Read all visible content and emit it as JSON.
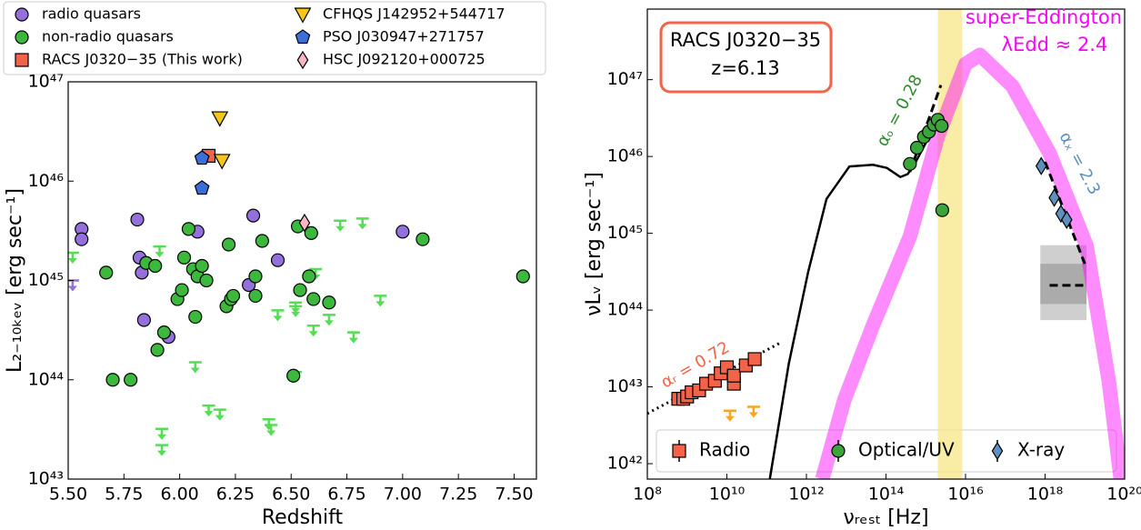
{
  "chart_data": [
    {
      "type": "scatter",
      "xlabel": "Redshift",
      "ylabel": "L₂₋₁₀ₖₑᵥ  [erg sec⁻¹]",
      "xlim": [
        5.5,
        7.6
      ],
      "ylim": [
        1e+43,
        1e+47
      ],
      "yscale": "log",
      "xticks": [
        {
          "value": 5.5,
          "label": "5.50"
        },
        5.75,
        {
          "value": 6,
          "label": "6.00"
        },
        6.25,
        {
          "value": 6.5,
          "label": "6.50"
        },
        6.75,
        {
          "value": 7,
          "label": "7.00"
        },
        7.25,
        {
          "value": 7.5,
          "label": "7.50"
        }
      ],
      "yticks": [
        {
          "value": 1e+43,
          "label": "10⁴³"
        },
        {
          "value": 1e+44,
          "label": "10⁴⁴"
        },
        {
          "value": 1e+45,
          "label": "10⁴⁵"
        },
        {
          "value": 1e+46,
          "label": "10⁴⁶"
        },
        {
          "value": 1e+47,
          "label": "10⁴⁷"
        }
      ],
      "legend": "top",
      "series": [
        {
          "name": "radio quasars",
          "color": "#9370db",
          "marker": "circle",
          "x": [
            5.56,
            5.56,
            5.81,
            5.82,
            5.83,
            5.84,
            5.95,
            6.08,
            6.31,
            6.33,
            6.44,
            7.0
          ],
          "values": [
            3.3e+45,
            2.6e+45,
            4.1e+45,
            1.7e+45,
            1.2e+45,
            4e+44,
            2.7e+44,
            3.1e+45,
            9e+44,
            4.5e+45,
            1.6e+45,
            3.1e+45
          ],
          "upper_limits": {
            "x": [
              5.52
            ],
            "values": [
              1e+45
            ],
            "color": "#9370db"
          }
        },
        {
          "name": "non-radio quasars",
          "color": "#3cb83c",
          "marker": "circle",
          "x": [
            5.67,
            5.7,
            5.78,
            5.85,
            5.89,
            5.9,
            5.93,
            5.99,
            6.01,
            6.02,
            6.04,
            6.06,
            6.07,
            6.08,
            6.1,
            6.12,
            6.21,
            6.22,
            6.23,
            6.24,
            6.34,
            6.34,
            6.37,
            6.51,
            6.53,
            6.54,
            6.58,
            6.59,
            6.6,
            6.67,
            7.09,
            7.54
          ],
          "values": [
            1.2e+45,
            1e+44,
            1e+44,
            1.5e+45,
            1.4e+45,
            2e+44,
            3e+44,
            6.5e+44,
            8e+44,
            1.7e+45,
            3.3e+45,
            1.3e+45,
            4.3e+44,
            1.1e+45,
            1.4e+45,
            1e+45,
            5.5e+44,
            2.3e+45,
            6.5e+44,
            7e+44,
            7e+44,
            1.1e+45,
            2.5e+45,
            1.1e+44,
            3.5e+45,
            8e+44,
            1.1e+45,
            3e+45,
            6.5e+44,
            6e+44,
            2.6e+45,
            1.1e+45
          ],
          "upper_limits": {
            "x": [
              5.52,
              5.92,
              5.92,
              5.91,
              6.07,
              6.13,
              6.18,
              6.4,
              6.41,
              6.44,
              6.52,
              6.52,
              6.6,
              6.61,
              6.67,
              6.72,
              6.78,
              6.82,
              6.9,
              6.52
            ],
            "values": [
              1.9e+45,
              3.2e+43,
              2.2e+43,
              2.2e+45,
              1.5e+44,
              5.5e+43,
              5e+43,
              4e+43,
              3.5e+43,
              5e+44,
              6e+44,
              5.5e+44,
              3.5e+44,
              1.3e+45,
              4.5e+44,
              4e+45,
              3e+44,
              4.2e+45,
              7e+44,
              1.2e+44
            ],
            "color": "#55dd55"
          }
        },
        {
          "name": "RACS J0320−35 (This work)",
          "color": "#f26349",
          "marker": "square",
          "x": [
            6.13
          ],
          "values": [
            1.8e+46
          ]
        },
        {
          "name": "CFHQS J142952+544717",
          "color": "#f5c518",
          "marker": "triangle",
          "x": [
            6.18,
            6.19
          ],
          "values": [
            4.3e+46,
            1.6e+46
          ]
        },
        {
          "name": "PSO J030947+271757",
          "color": "#3a6fd8",
          "marker": "pentagon",
          "x": [
            6.1,
            6.1
          ],
          "values": [
            1.7e+46,
            8.5e+45
          ]
        },
        {
          "name": "HSC J092120+000725",
          "color": "#f7b6c2",
          "marker": "diamond",
          "x": [
            6.56
          ],
          "values": [
            3.8e+45
          ]
        }
      ]
    },
    {
      "type": "scatter",
      "xlabel": "νᵣₑₛₜ [Hz]",
      "ylabel": "νLᵥ [erg sec⁻¹]",
      "xlim": [
        100000000.0,
        1e+20
      ],
      "ylim": [
        6.3e+41,
        8.3e+47
      ],
      "xscale": "log",
      "yscale": "log",
      "xticks": [
        {
          "value": 100000000.0,
          "label": "10⁸"
        },
        {
          "value": 10000000000.0,
          "label": "10¹⁰"
        },
        {
          "value": 1000000000000.0,
          "label": "10¹²"
        },
        {
          "value": 100000000000000.0,
          "label": "10¹⁴"
        },
        {
          "value": 1e+16,
          "label": "10¹⁶"
        },
        {
          "value": 1e+18,
          "label": "10¹⁸"
        },
        {
          "value": 1e+20,
          "label": "10²⁰"
        }
      ],
      "yticks": [
        {
          "value": 1e+42,
          "label": "10⁴²"
        },
        {
          "value": 1e+43,
          "label": "10⁴³"
        },
        {
          "value": 1e+44,
          "label": "10⁴⁴"
        },
        {
          "value": 1e+45,
          "label": "10⁴⁵"
        },
        {
          "value": 1e+46,
          "label": "10⁴⁶"
        },
        {
          "value": 1e+47,
          "label": "10⁴⁷"
        }
      ],
      "legend": "lower center",
      "annotations": [
        "RACS J0320−35",
        "z=6.13",
        "αₒ = 0.28",
        "αₓ = 2.3",
        "αᵣ = 0.72"
      ],
      "shaded_regions": [
        {
          "xlim": [
            2000000000000000.0,
            8300000000000000.0
          ],
          "color": "#f7e98e"
        }
      ],
      "boxes": [
        {
          "xlim": [
            7.6e+17,
            1.1e+19
          ],
          "ylim": [
            7.4e+43,
            7e+44
          ],
          "color": "#cfcfcf"
        },
        {
          "xlim": [
            7.6e+17,
            1.1e+19
          ],
          "ylim": [
            1.2e+44,
            4e+44
          ],
          "color": "#ababab"
        }
      ],
      "curves": [
        {
          "name": "super-Eddington",
          "label": "λEdd ≈ 2.4",
          "color": "#ff00ff",
          "style": "band",
          "x": [
            2500000000000.0,
            9000000000000.0,
            47000000000000.0,
            400000000000000.0,
            2000000000000000.0,
            1e+16,
            2.3e+16,
            1.5e+17,
            1.3e+18,
            1.1e+19,
            4e+19,
            8e+19
          ],
          "values": [
            6.3e+41,
            6.8e+42,
            6.3e+43,
            9.1e+44,
            1.8e+46,
            1.6e+47,
            2.1e+47,
            8.3e+46,
            1.1e+46,
            6.9e+44,
            1.2e+43,
            6.3e+41
          ]
        },
        {
          "color": "#000000",
          "style": "solid",
          "x": [
            120000000000.0,
            360000000000.0,
            1100000000000.0,
            3200000000000.0,
            12000000000000.0,
            47000000000000.0,
            105000000000000.0,
            230000000000000.0,
            350000000000000.0,
            520000000000000.0,
            1000000000000000.0,
            2000000000000000.0
          ],
          "values": [
            6.3e+41,
            2e+43,
            3.1e+44,
            2.8e+45,
            7.4e+45,
            7.8e+45,
            7.1e+45,
            5.4e+45,
            5.9e+45,
            7.9e+45,
            1.5e+46,
            3e+46
          ]
        },
        {
          "color": "#000000",
          "style": "dotted",
          "x": [
            100000000.0,
            210000000000.0
          ],
          "values": [
            4.5e+42,
            3.7e+43
          ]
        },
        {
          "color": "#000000",
          "style": "dashed",
          "x": [
            400000000000000.0,
            2400000000000000.0
          ],
          "values": [
            6.3e+45,
            8.5e+46
          ]
        },
        {
          "color": "#000000",
          "style": "dashed",
          "x": [
            1e+18,
            1e+19
          ],
          "values": [
            8.5e+45,
            4e+44
          ]
        },
        {
          "color": "#000000",
          "style": "dashed",
          "x": [
            1.3e+18,
            1e+19
          ],
          "values": [
            2.1e+44,
            2.1e+44
          ]
        }
      ],
      "series": [
        {
          "name": "Radio",
          "color": "#f26349",
          "marker": "square",
          "x": [
            600000000.0,
            800000000.0,
            1000000000.0,
            1300000000.0,
            2000000000.0,
            3000000000.0,
            5000000000.0,
            7000000000.0,
            10000000000.0,
            15000000000.0,
            15000000000.0,
            30000000000.0,
            50000000000.0
          ],
          "values": [
            7e+42,
            7e+42,
            7.5e+42,
            8.5e+42,
            9e+42,
            1.1e+43,
            1.2e+43,
            1.5e+43,
            1.8e+43,
            1.1e+43,
            1.4e+43,
            1.9e+43,
            2.3e+43
          ],
          "upper_limits": {
            "x": [
              12000000000.0,
              47000000000.0
            ],
            "values": [
              4.9e+42,
              5.5e+42
            ],
            "color": "#f5a623"
          }
        },
        {
          "name": "Optical/UV",
          "color": "#3aa63a",
          "marker": "circle",
          "x": [
            400000000000000.0,
            600000000000000.0,
            900000000000000.0,
            1200000000000000.0,
            1600000000000000.0,
            2000000000000000.0,
            2500000000000000.0,
            2600000000000000.0
          ],
          "values": [
            8e+45,
            1.3e+46,
            1.8e+46,
            2.1e+46,
            2.6e+46,
            3e+46,
            2.5e+46,
            2e+45
          ]
        },
        {
          "name": "X-ray",
          "color": "#5e8fbf",
          "marker": "diamond",
          "x": [
            8e+17,
            1.7e+18,
            2.5e+18,
            3.5e+18
          ],
          "values": [
            7.5e+45,
            2.9e+45,
            1.8e+45,
            1.5e+45
          ]
        }
      ]
    }
  ]
}
